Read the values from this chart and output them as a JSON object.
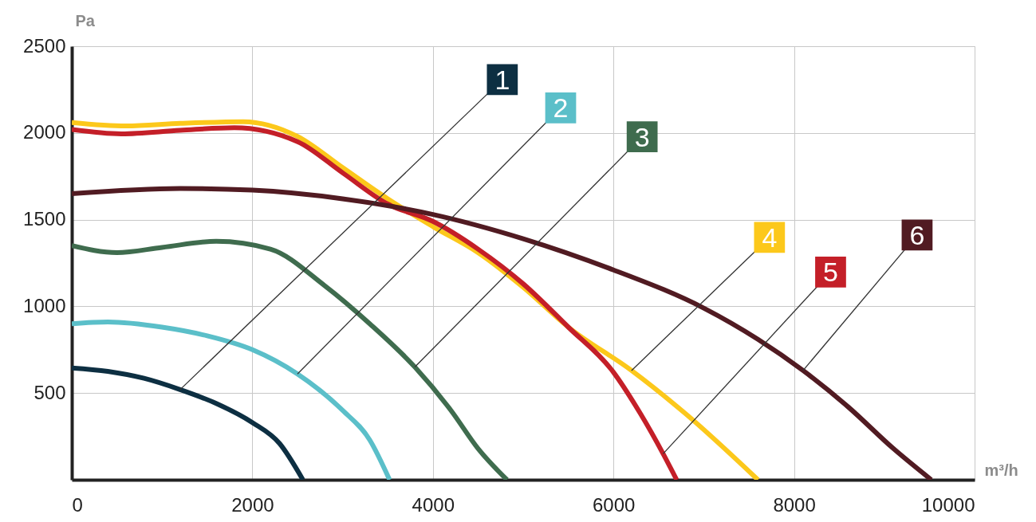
{
  "chart_data": {
    "type": "line",
    "xlabel": "m³/h",
    "ylabel": "Pa",
    "xlim": [
      0,
      10000
    ],
    "xticks": [
      0,
      2000,
      4000,
      6000,
      8000,
      10000
    ],
    "ylim": [
      0,
      2500
    ],
    "yticks": [
      500,
      1000,
      1500,
      2000,
      2500
    ],
    "grid": true,
    "legend": false,
    "marker": "none",
    "line_style": "solid",
    "series": [
      {
        "name": "1",
        "color": "#0d2f42",
        "x": [
          0,
          400,
          800,
          1200,
          1600,
          2000,
          2300,
          2560
        ],
        "values": [
          645,
          625,
          585,
          520,
          440,
          330,
          210,
          0
        ]
      },
      {
        "name": "2",
        "color": "#5bbfc9",
        "x": [
          0,
          400,
          1000,
          1500,
          2000,
          2500,
          3000,
          3300,
          3520
        ],
        "values": [
          900,
          910,
          880,
          830,
          750,
          610,
          400,
          230,
          0
        ]
      },
      {
        "name": "3",
        "color": "#3f6c4e",
        "x": [
          0,
          500,
          1000,
          1600,
          2200,
          2800,
          3300,
          3800,
          4200,
          4500,
          4820
        ],
        "values": [
          1350,
          1310,
          1340,
          1375,
          1330,
          1120,
          900,
          650,
          400,
          180,
          0
        ]
      },
      {
        "name": "4",
        "color": "#fcc81b",
        "x": [
          0,
          600,
          1200,
          1900,
          2500,
          3000,
          3500,
          4000,
          4500,
          5000,
          5500,
          6200,
          6800,
          7600
        ],
        "values": [
          2060,
          2040,
          2055,
          2065,
          1980,
          1800,
          1620,
          1460,
          1310,
          1110,
          880,
          630,
          380,
          0
        ]
      },
      {
        "name": "5",
        "color": "#c41f28",
        "x": [
          0,
          550,
          1200,
          1800,
          2500,
          3000,
          3500,
          4000,
          4500,
          5000,
          5500,
          6000,
          6300,
          6550,
          6700
        ],
        "values": [
          2020,
          1995,
          2015,
          2030,
          1950,
          1770,
          1590,
          1490,
          1330,
          1130,
          880,
          620,
          380,
          150,
          0
        ]
      },
      {
        "name": "6",
        "color": "#511b22",
        "x": [
          0,
          1200,
          2000,
          3000,
          4000,
          5000,
          6000,
          7000,
          7600,
          8100,
          8600,
          9100,
          9520
        ],
        "values": [
          1650,
          1680,
          1670,
          1620,
          1530,
          1390,
          1210,
          990,
          810,
          630,
          420,
          180,
          0
        ]
      }
    ]
  }
}
